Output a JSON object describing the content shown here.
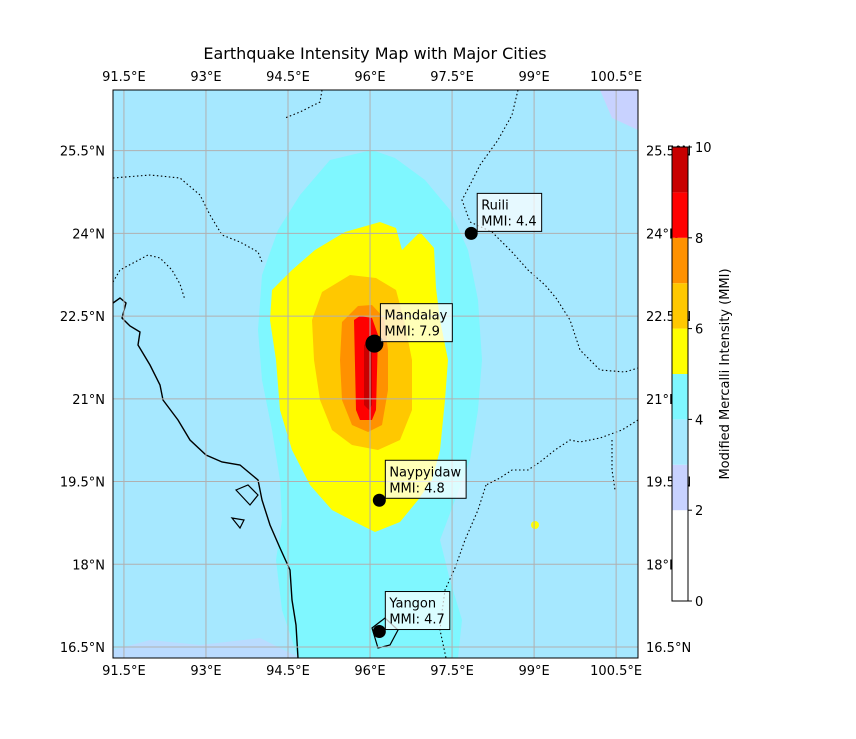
{
  "title": "Earthquake Intensity Map with Major Cities",
  "map": {
    "lon_range": [
      91.3,
      100.9
    ],
    "lat_range": [
      16.3,
      26.6
    ],
    "lon_ticks": [
      "91.5°E",
      "93°E",
      "94.5°E",
      "96°E",
      "97.5°E",
      "99°E",
      "100.5°E"
    ],
    "lon_tick_values": [
      91.5,
      93,
      94.5,
      96,
      97.5,
      99,
      100.5
    ],
    "lat_ticks": [
      "16.5°N",
      "18°N",
      "19.5°N",
      "21°N",
      "22.5°N",
      "24°N",
      "25.5°N"
    ],
    "lat_tick_values": [
      16.5,
      18,
      19.5,
      21,
      22.5,
      24,
      25.5
    ],
    "grid": true,
    "base_color": "#a6e8ff"
  },
  "cities": [
    {
      "name": "Ruili",
      "mmi_text": "MMI: 4.4",
      "lon": 97.85,
      "lat": 24.0,
      "major": false
    },
    {
      "name": "Mandalay",
      "mmi_text": "MMI: 7.9",
      "lon": 96.08,
      "lat": 22.0,
      "major": true
    },
    {
      "name": "Naypyidaw",
      "mmi_text": "MMI: 4.8",
      "lon": 96.17,
      "lat": 19.16,
      "major": false
    },
    {
      "name": "Yangon",
      "mmi_text": "MMI: 4.7",
      "lon": 96.17,
      "lat": 16.78,
      "major": false
    }
  ],
  "colorbar": {
    "label": "Modified Mercalli Intensity (MMI)",
    "ticks": [
      "0",
      "2",
      "4",
      "6",
      "8",
      "10"
    ],
    "tick_values": [
      0,
      2,
      4,
      6,
      8,
      10
    ],
    "range": [
      0,
      10
    ],
    "bands": [
      {
        "from": 0,
        "to": 2,
        "color": "#ffffff"
      },
      {
        "from": 2,
        "to": 3,
        "color": "#c8d2ff"
      },
      {
        "from": 3,
        "to": 4,
        "color": "#a6e8ff"
      },
      {
        "from": 4,
        "to": 5,
        "color": "#7ff7ff"
      },
      {
        "from": 5,
        "to": 6,
        "color": "#ffff00"
      },
      {
        "from": 6,
        "to": 7,
        "color": "#ffc800"
      },
      {
        "from": 7,
        "to": 8,
        "color": "#ff9100"
      },
      {
        "from": 8,
        "to": 9,
        "color": "#ff0000"
      },
      {
        "from": 9,
        "to": 10,
        "color": "#c80000"
      }
    ]
  }
}
